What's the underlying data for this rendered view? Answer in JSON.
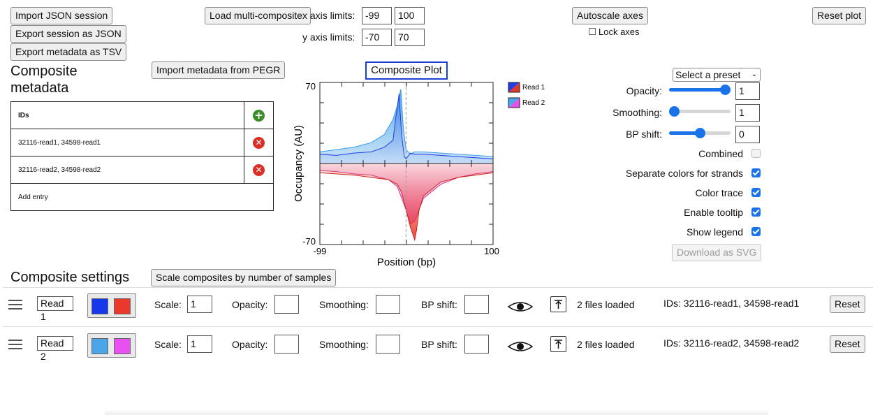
{
  "top_buttons": {
    "import_json": "Import JSON session",
    "export_json": "Export session as JSON",
    "export_tsv": "Export metadata as TSV",
    "load_multi": "Load multi-composite",
    "autoscale": "Autoscale axes",
    "reset_plot": "Reset plot"
  },
  "axis_limits": {
    "x_label": "x axis limits:",
    "x_min": "-99",
    "x_max": "100",
    "y_label": "y axis limits:",
    "y_min": "-70",
    "y_max": "70",
    "lock_label": "Lock axes"
  },
  "metadata": {
    "title": "Composite metadata",
    "import_pegr": "Import metadata from PEGR",
    "header": "IDs",
    "rows": [
      "32116-read1, 34598-read1",
      "32116-read2, 34598-read2"
    ],
    "add_entry": "Add entry"
  },
  "plot": {
    "title": "Composite Plot",
    "y_top": "70",
    "y_bottom": "-70",
    "x_left": "-99",
    "x_right": "100",
    "xlabel": "Position (bp)",
    "ylabel": "Occupancy (AU)",
    "legend": [
      {
        "name": "Read 1",
        "primary": "#1f3ee6",
        "secondary": "#e8352b"
      },
      {
        "name": "Read 2",
        "primary": "#4aa6e8",
        "secondary": "#e34fe8"
      }
    ]
  },
  "chart_data": {
    "type": "area",
    "title": "Composite Plot",
    "xlabel": "Position (bp)",
    "ylabel": "Occupancy (AU)",
    "xlim": [
      -99,
      100
    ],
    "ylim": [
      -70,
      70
    ],
    "series": [
      {
        "name": "Read 1",
        "x": [
          -99,
          -80,
          -60,
          -40,
          -25,
          -15,
          -12,
          -8,
          -5,
          -2,
          0,
          5,
          10,
          20,
          40,
          60,
          80,
          100
        ],
        "values": [
          8,
          7,
          9,
          10,
          14,
          20,
          38,
          60,
          24,
          6,
          4,
          9,
          8,
          8,
          7,
          6,
          5,
          4
        ]
      },
      {
        "name": "Read 1",
        "x": [
          -99,
          -80,
          -60,
          -40,
          -20,
          -10,
          -5,
          0,
          5,
          10,
          12,
          15,
          20,
          40,
          60,
          80,
          100
        ],
        "values": [
          -8,
          -9,
          -10,
          -12,
          -14,
          -18,
          -25,
          -40,
          -55,
          -66,
          -58,
          -40,
          -28,
          -16,
          -12,
          -10,
          -8
        ]
      },
      {
        "name": "Read 2",
        "x": [
          -99,
          -80,
          -60,
          -40,
          -25,
          -15,
          -10,
          -6,
          -3,
          0,
          5,
          10,
          20,
          40,
          60,
          80,
          100
        ],
        "values": [
          10,
          12,
          14,
          18,
          25,
          38,
          50,
          64,
          30,
          12,
          8,
          10,
          10,
          9,
          8,
          7,
          6
        ]
      },
      {
        "name": "Read 2",
        "x": [
          -99,
          -80,
          -60,
          -40,
          -20,
          -10,
          0,
          5,
          10,
          15,
          20,
          40,
          60,
          80,
          100
        ],
        "values": [
          -6,
          -7,
          -9,
          -10,
          -14,
          -20,
          -40,
          -52,
          -50,
          -40,
          -30,
          -18,
          -12,
          -9,
          -7
        ]
      }
    ]
  },
  "settings_panel": {
    "preset": "Select a preset",
    "opacity_label": "Opacity:",
    "opacity_value": "1",
    "opacity_level": 1.0,
    "smoothing_label": "Smoothing:",
    "smoothing_value": "1",
    "smoothing_level": 0.0,
    "bp_shift_label": "BP shift:",
    "bp_shift_value": "0",
    "bp_shift_level": 0.5,
    "combined": "Combined",
    "separate": "Separate colors for strands",
    "color_trace": "Color trace",
    "tooltip": "Enable tooltip",
    "legend": "Show legend",
    "download": "Download as SVG"
  },
  "composite_settings": {
    "title": "Composite settings",
    "scale_button": "Scale composites by number of samples",
    "scale_label": "Scale:",
    "opacity_label": "Opacity:",
    "smoothing_label": "Smoothing:",
    "bp_shift_label": "BP shift:",
    "reset_label": "Reset",
    "rows": [
      {
        "name": "Read 1",
        "scale": "1",
        "files": "2 files loaded",
        "ids": "IDs: 32116-read1, 34598-read1",
        "color1": "#1638ea",
        "color2": "#e8392c"
      },
      {
        "name": "Read 2",
        "scale": "1",
        "files": "2 files loaded",
        "ids": "IDs: 32116-read2, 34598-read2",
        "color1": "#4aa6e8",
        "color2": "#e850ef"
      }
    ]
  }
}
